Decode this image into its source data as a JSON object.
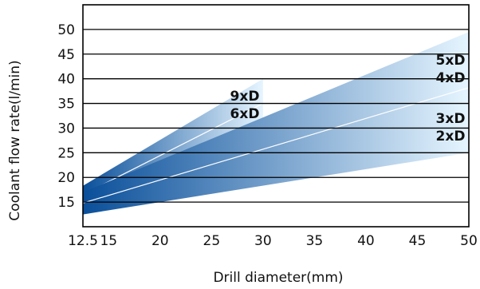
{
  "chart_data": {
    "type": "area",
    "title": "",
    "xlabel": "Drill diameter(mm)",
    "ylabel": "Coolant flow rate(l/min)",
    "xlim": [
      12.5,
      50
    ],
    "ylim": [
      10,
      55
    ],
    "x_ticks": [
      12.5,
      15,
      20,
      25,
      30,
      35,
      40,
      45,
      50
    ],
    "x_tick_labels": [
      "12.5",
      "15",
      "20",
      "25",
      "30",
      "35",
      "40",
      "45",
      "50"
    ],
    "y_ticks": [
      15,
      20,
      25,
      30,
      35,
      40,
      45,
      50
    ],
    "y_tick_labels": [
      "15",
      "20",
      "25",
      "30",
      "35",
      "40",
      "45",
      "50"
    ],
    "grid": "horizontal",
    "colors": {
      "band_dark": "#0a4f9a",
      "band_light": "#e6f5ff",
      "divider": "#ffffff",
      "axis": "#000000"
    },
    "bands": [
      {
        "label_lines": [
          "9xD",
          "6xD"
        ],
        "x": [
          12.5,
          30
        ],
        "upper": [
          18.3,
          40.0
        ],
        "lower": [
          14.8,
          29.9
        ],
        "divider": [
          16.5,
          35.0
        ]
      },
      {
        "label_lines": [
          "5xD",
          "4xD",
          "3xD",
          "2xD"
        ],
        "x": [
          12.5,
          50
        ],
        "upper": [
          17.0,
          49.5
        ],
        "lower": [
          12.5,
          25.0
        ],
        "divider": [
          14.8,
          38.2
        ]
      }
    ]
  }
}
